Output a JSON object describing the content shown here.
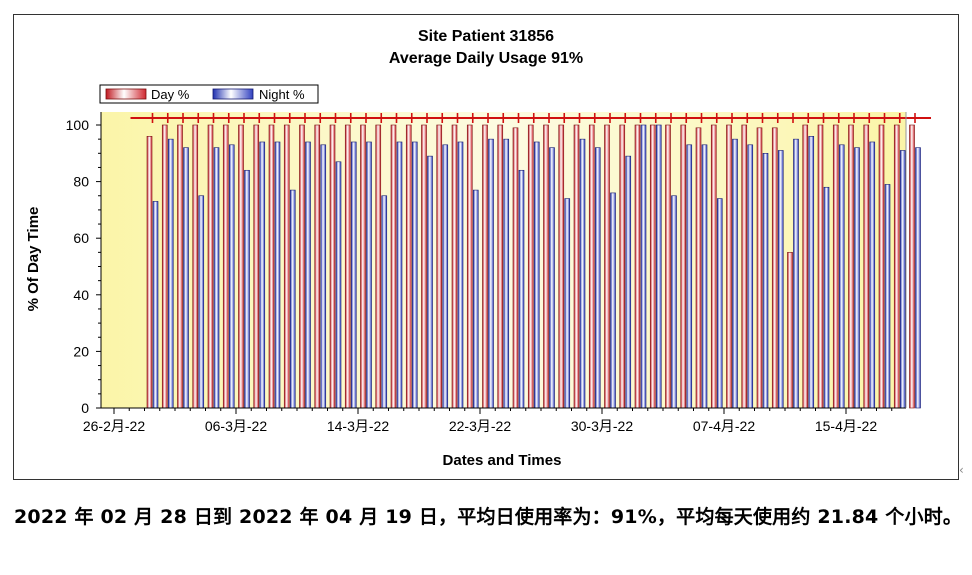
{
  "chart_data": {
    "type": "bar",
    "title": "Site Patient 31856",
    "subtitle": "Average Daily Usage 91%",
    "xlabel": "Dates and Times",
    "ylabel": "% Of Day Time",
    "ylim": [
      0,
      100
    ],
    "yticks": [
      0,
      20,
      40,
      60,
      80,
      100
    ],
    "x_tick_labels": [
      "26-2月-22",
      "06-3月-22",
      "14-3月-22",
      "22-3月-22",
      "30-3月-22",
      "07-4月-22",
      "15-4月-22"
    ],
    "x_start": "2022-02-26",
    "legend_position": "top-left",
    "grid": false,
    "colors": {
      "day": "#e8474e",
      "night": "#4a55d8",
      "plot_bg": "#fbf8c4",
      "marker": "#d01010"
    },
    "categories": [
      "2022-02-28",
      "2022-03-01",
      "2022-03-02",
      "2022-03-03",
      "2022-03-04",
      "2022-03-05",
      "2022-03-06",
      "2022-03-07",
      "2022-03-08",
      "2022-03-09",
      "2022-03-10",
      "2022-03-11",
      "2022-03-12",
      "2022-03-13",
      "2022-03-14",
      "2022-03-15",
      "2022-03-16",
      "2022-03-17",
      "2022-03-18",
      "2022-03-19",
      "2022-03-20",
      "2022-03-21",
      "2022-03-22",
      "2022-03-23",
      "2022-03-24",
      "2022-03-25",
      "2022-03-26",
      "2022-03-27",
      "2022-03-28",
      "2022-03-29",
      "2022-03-30",
      "2022-03-31",
      "2022-04-01",
      "2022-04-02",
      "2022-04-03",
      "2022-04-04",
      "2022-04-05",
      "2022-04-06",
      "2022-04-07",
      "2022-04-08",
      "2022-04-09",
      "2022-04-10",
      "2022-04-11",
      "2022-04-12",
      "2022-04-13",
      "2022-04-14",
      "2022-04-15",
      "2022-04-16",
      "2022-04-17",
      "2022-04-18",
      "2022-04-19"
    ],
    "series": [
      {
        "name": "Day %",
        "values": [
          96,
          100,
          100,
          100,
          100,
          100,
          100,
          100,
          100,
          100,
          100,
          100,
          100,
          100,
          100,
          100,
          100,
          100,
          100,
          100,
          100,
          100,
          100,
          100,
          99,
          100,
          100,
          100,
          100,
          100,
          100,
          100,
          100,
          100,
          100,
          100,
          99,
          100,
          100,
          100,
          99,
          99,
          55,
          100,
          100,
          100,
          100,
          100,
          100,
          100,
          100
        ]
      },
      {
        "name": "Night %",
        "values": [
          73,
          95,
          92,
          75,
          92,
          93,
          84,
          94,
          94,
          77,
          94,
          93,
          87,
          94,
          94,
          75,
          94,
          94,
          89,
          93,
          94,
          77,
          95,
          95,
          84,
          94,
          92,
          74,
          95,
          92,
          76,
          89,
          100,
          100,
          75,
          93,
          93,
          74,
          95,
          93,
          90,
          91,
          95,
          96,
          78,
          93,
          92,
          94,
          79,
          91,
          92
        ]
      }
    ]
  },
  "legend": {
    "day_label": "Day %",
    "night_label": "Night %"
  },
  "caption": "2022 年 02 月 28 日到 2022 年 04 月 19 日，平均日使用率为：91%，平均每天使用约 21.84 个小时。"
}
